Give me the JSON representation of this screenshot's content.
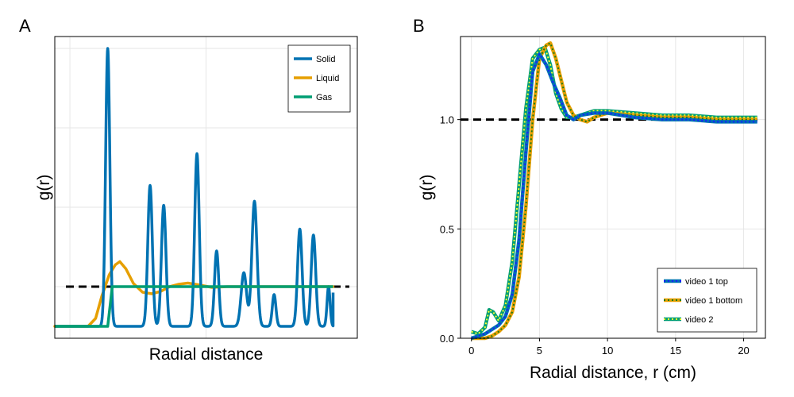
{
  "chart_data": [
    {
      "type": "line",
      "panel_label": "A",
      "xlabel": "Radial distance",
      "ylabel": "g(r)",
      "xlim": [
        0,
        10
      ],
      "ylim": [
        -0.3,
        7.3
      ],
      "grid": true,
      "x_ticks_labeled": false,
      "y_ticks_labeled": false,
      "reference_line": {
        "y": 1.0,
        "style": "dashed",
        "color": "#000000"
      },
      "legend": {
        "placement": "top-right",
        "entries": [
          "Solid",
          "Liquid",
          "Gas"
        ]
      },
      "series": [
        {
          "name": "Solid",
          "color": "#0072b2",
          "baseline": 0.0,
          "tail": {
            "x": 9.2,
            "y": 0.85
          },
          "peaks": [
            {
              "x": 1.75,
              "height": 7.0,
              "width": 0.07
            },
            {
              "x": 3.15,
              "height": 3.55,
              "width": 0.075
            },
            {
              "x": 3.6,
              "height": 3.05,
              "width": 0.075
            },
            {
              "x": 4.7,
              "height": 4.35,
              "width": 0.075
            },
            {
              "x": 5.35,
              "height": 1.9,
              "width": 0.07
            },
            {
              "x": 6.25,
              "height": 1.35,
              "width": 0.09
            },
            {
              "x": 6.6,
              "height": 3.15,
              "width": 0.085
            },
            {
              "x": 7.25,
              "height": 0.8,
              "width": 0.06
            },
            {
              "x": 8.1,
              "height": 2.45,
              "width": 0.075
            },
            {
              "x": 8.55,
              "height": 2.3,
              "width": 0.075
            },
            {
              "x": 9.05,
              "height": 1.0,
              "width": 0.05
            }
          ]
        },
        {
          "name": "Liquid",
          "color": "#e69f00",
          "x": [
            0.0,
            1.1,
            1.35,
            1.55,
            1.8,
            2.0,
            2.15,
            2.35,
            2.6,
            2.9,
            3.2,
            3.5,
            3.8,
            4.1,
            4.4,
            4.8,
            5.2,
            5.7,
            6.2,
            9.2
          ],
          "values": [
            0.0,
            0.0,
            0.2,
            0.75,
            1.3,
            1.55,
            1.63,
            1.45,
            1.08,
            0.86,
            0.82,
            0.88,
            1.0,
            1.06,
            1.09,
            1.04,
            0.98,
            1.0,
            1.0,
            1.0
          ]
        },
        {
          "name": "Gas",
          "color": "#009e73",
          "x": [
            0.0,
            1.75,
            1.9,
            9.2
          ],
          "values": [
            0.0,
            0.0,
            1.0,
            1.0
          ]
        }
      ]
    },
    {
      "type": "line",
      "panel_label": "B",
      "xlabel": "Radial distance, r (cm)",
      "ylabel": "g(r)",
      "xlim": [
        -0.8,
        21.6
      ],
      "ylim": [
        0,
        1.38
      ],
      "xticks": [
        0,
        5,
        10,
        15,
        20
      ],
      "xtick_labels": [
        "0",
        "5",
        "10",
        "15",
        "20"
      ],
      "yticks": [
        0.0,
        0.5,
        1.0
      ],
      "ytick_labels": [
        "0.0",
        "0.5",
        "1.0"
      ],
      "grid": true,
      "reference_line": {
        "y": 1.0,
        "style": "dashed",
        "color": "#000000"
      },
      "legend": {
        "placement": "bottom-right",
        "entries": [
          "video 1 top",
          "video 1 bottom",
          "video 2"
        ]
      },
      "series": [
        {
          "name": "video 1 top",
          "color": "#0072b2",
          "dot_color": "#1a1aff",
          "x": [
            0.0,
            0.5,
            1.0,
            1.5,
            2.0,
            2.5,
            3.0,
            3.5,
            4.0,
            4.5,
            5.0,
            5.5,
            6.0,
            6.5,
            7.0,
            7.5,
            8.0,
            9.0,
            10.0,
            12.0,
            14.0,
            16.0,
            18.0,
            20.0,
            21.0
          ],
          "values": [
            0.0,
            0.01,
            0.02,
            0.04,
            0.06,
            0.1,
            0.2,
            0.45,
            0.85,
            1.22,
            1.3,
            1.25,
            1.17,
            1.1,
            1.02,
            1.0,
            1.02,
            1.03,
            1.03,
            1.01,
            1.0,
            1.0,
            0.99,
            0.99,
            0.99
          ]
        },
        {
          "name": "video 1 bottom",
          "color": "#e69f00",
          "dot_color": "#1a7a1a",
          "x": [
            0.0,
            1.0,
            1.5,
            2.0,
            2.5,
            3.0,
            3.5,
            4.0,
            4.5,
            5.0,
            5.5,
            5.8,
            6.2,
            6.6,
            7.0,
            7.5,
            8.0,
            8.5,
            9.0,
            10.0,
            12.0,
            14.0,
            16.0,
            18.0,
            20.0,
            21.0
          ],
          "values": [
            0.0,
            0.0,
            0.01,
            0.03,
            0.06,
            0.12,
            0.28,
            0.6,
            1.0,
            1.28,
            1.34,
            1.35,
            1.28,
            1.18,
            1.08,
            1.02,
            1.0,
            0.99,
            1.01,
            1.03,
            1.02,
            1.01,
            1.01,
            1.0,
            1.0,
            1.0
          ]
        },
        {
          "name": "video 2",
          "color": "#009e73",
          "dot_color": "#ffff33",
          "x": [
            0.0,
            0.5,
            1.0,
            1.3,
            1.6,
            2.0,
            2.5,
            3.0,
            3.5,
            4.0,
            4.5,
            5.0,
            5.4,
            5.8,
            6.2,
            6.6,
            7.0,
            7.5,
            8.0,
            9.0,
            10.0,
            12.0,
            14.0,
            16.0,
            18.0,
            20.0,
            21.0
          ],
          "values": [
            0.03,
            0.02,
            0.05,
            0.13,
            0.12,
            0.08,
            0.15,
            0.35,
            0.7,
            1.05,
            1.28,
            1.32,
            1.33,
            1.25,
            1.12,
            1.05,
            1.01,
            1.01,
            1.02,
            1.04,
            1.04,
            1.03,
            1.02,
            1.02,
            1.01,
            1.01,
            1.01
          ]
        }
      ]
    }
  ]
}
